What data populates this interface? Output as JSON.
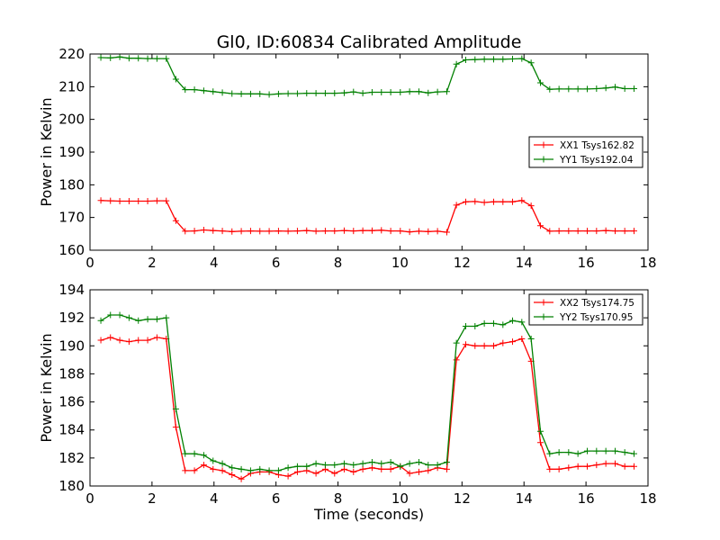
{
  "figure": {
    "title": "Gl0, ID:60834 Calibrated Amplitude",
    "xlabel": "Time (seconds)"
  },
  "chart_data": [
    {
      "type": "line",
      "title": "Gl0, ID:60834 Calibrated Amplitude",
      "xlabel": "",
      "ylabel": "Power in Kelvin",
      "xlim": [
        0,
        18
      ],
      "ylim": [
        160,
        220
      ],
      "xticks": [
        "0",
        "2",
        "4",
        "6",
        "8",
        "10",
        "12",
        "14",
        "16",
        "18"
      ],
      "yticks": [
        "160",
        "170",
        "180",
        "190",
        "200",
        "210",
        "220"
      ],
      "grid": false,
      "legend_position": "center-right",
      "x": [
        0.35,
        0.66,
        0.96,
        1.26,
        1.56,
        1.86,
        2.16,
        2.46,
        2.77,
        3.07,
        3.37,
        3.67,
        3.97,
        4.27,
        4.58,
        4.88,
        5.18,
        5.48,
        5.78,
        6.08,
        6.39,
        6.69,
        6.99,
        7.29,
        7.59,
        7.89,
        8.2,
        8.5,
        8.8,
        9.1,
        9.4,
        9.7,
        10.01,
        10.31,
        10.61,
        10.91,
        11.21,
        11.51,
        11.82,
        12.12,
        12.42,
        12.72,
        13.02,
        13.32,
        13.63,
        13.93,
        14.23,
        14.53,
        14.83,
        15.13,
        15.44,
        15.74,
        16.04,
        16.34,
        16.64,
        16.94,
        17.25,
        17.55
      ],
      "series": [
        {
          "name": "XX1 Tsys162.82",
          "color": "#ff0000",
          "values": [
            175.2,
            175.1,
            175.0,
            175.0,
            175.0,
            175.0,
            175.1,
            175.1,
            169.0,
            165.8,
            165.9,
            166.2,
            166.0,
            165.9,
            165.7,
            165.8,
            165.9,
            165.8,
            165.8,
            165.9,
            165.8,
            165.9,
            166.0,
            165.8,
            165.9,
            165.9,
            166.0,
            165.9,
            166.0,
            166.0,
            166.1,
            165.9,
            165.9,
            165.6,
            165.8,
            165.7,
            165.8,
            165.5,
            173.8,
            174.8,
            174.9,
            174.6,
            174.8,
            174.8,
            174.8,
            175.2,
            173.6,
            167.5,
            165.8,
            165.9,
            165.9,
            165.9,
            165.9,
            165.9,
            166.0,
            165.9,
            165.9,
            165.9
          ]
        },
        {
          "name": "YY1 Tsys192.04",
          "color": "#008000",
          "values": [
            218.9,
            218.8,
            219.1,
            218.7,
            218.7,
            218.6,
            218.6,
            218.6,
            212.3,
            209.1,
            209.1,
            208.8,
            208.5,
            208.2,
            207.9,
            207.8,
            207.8,
            207.8,
            207.6,
            207.8,
            207.9,
            207.9,
            208.0,
            208.0,
            208.0,
            208.0,
            208.1,
            208.4,
            208.0,
            208.3,
            208.3,
            208.3,
            208.3,
            208.5,
            208.5,
            208.1,
            208.4,
            208.5,
            216.9,
            218.2,
            218.3,
            218.4,
            218.4,
            218.4,
            218.5,
            218.6,
            217.3,
            211.2,
            209.2,
            209.3,
            209.3,
            209.3,
            209.3,
            209.4,
            209.6,
            209.9,
            209.4,
            209.4
          ]
        }
      ]
    },
    {
      "type": "line",
      "title": "",
      "xlabel": "Time (seconds)",
      "ylabel": "Power in Kelvin",
      "xlim": [
        0,
        18
      ],
      "ylim": [
        180,
        194
      ],
      "xticks": [
        "0",
        "2",
        "4",
        "6",
        "8",
        "10",
        "12",
        "14",
        "16",
        "18"
      ],
      "yticks": [
        "180",
        "182",
        "184",
        "186",
        "188",
        "190",
        "192",
        "194"
      ],
      "grid": false,
      "legend_position": "top-right",
      "x": [
        0.35,
        0.66,
        0.96,
        1.26,
        1.56,
        1.86,
        2.16,
        2.46,
        2.77,
        3.07,
        3.37,
        3.67,
        3.97,
        4.27,
        4.58,
        4.88,
        5.18,
        5.48,
        5.78,
        6.08,
        6.39,
        6.69,
        6.99,
        7.29,
        7.59,
        7.89,
        8.2,
        8.5,
        8.8,
        9.1,
        9.4,
        9.7,
        10.01,
        10.31,
        10.61,
        10.91,
        11.21,
        11.51,
        11.82,
        12.12,
        12.42,
        12.72,
        13.02,
        13.32,
        13.63,
        13.93,
        14.23,
        14.53,
        14.83,
        15.13,
        15.44,
        15.74,
        16.04,
        16.34,
        16.64,
        16.94,
        17.25,
        17.55
      ],
      "series": [
        {
          "name": "XX2 Tsys174.75",
          "color": "#ff0000",
          "values": [
            190.4,
            190.6,
            190.4,
            190.3,
            190.4,
            190.4,
            190.6,
            190.5,
            184.2,
            181.1,
            181.1,
            181.5,
            181.2,
            181.1,
            180.8,
            180.5,
            180.9,
            181.0,
            181.0,
            180.8,
            180.7,
            181.0,
            181.1,
            180.9,
            181.2,
            180.9,
            181.2,
            181.0,
            181.2,
            181.3,
            181.2,
            181.2,
            181.4,
            180.9,
            181.0,
            181.1,
            181.3,
            181.2,
            189.0,
            190.1,
            190.0,
            190.0,
            190.0,
            190.2,
            190.3,
            190.5,
            188.9,
            183.1,
            181.2,
            181.2,
            181.3,
            181.4,
            181.4,
            181.5,
            181.6,
            181.6,
            181.4,
            181.4
          ]
        },
        {
          "name": "YY2 Tsys170.95",
          "color": "#008000",
          "values": [
            191.8,
            192.2,
            192.2,
            192.0,
            191.8,
            191.9,
            191.9,
            192.0,
            185.5,
            182.3,
            182.3,
            182.2,
            181.8,
            181.6,
            181.3,
            181.2,
            181.1,
            181.2,
            181.1,
            181.1,
            181.3,
            181.4,
            181.4,
            181.6,
            181.5,
            181.5,
            181.6,
            181.5,
            181.6,
            181.7,
            181.6,
            181.7,
            181.4,
            181.6,
            181.7,
            181.5,
            181.5,
            181.7,
            190.2,
            191.4,
            191.4,
            191.6,
            191.6,
            191.5,
            191.8,
            191.7,
            190.5,
            183.9,
            182.3,
            182.4,
            182.4,
            182.3,
            182.5,
            182.5,
            182.5,
            182.5,
            182.4,
            182.3
          ]
        }
      ]
    }
  ]
}
